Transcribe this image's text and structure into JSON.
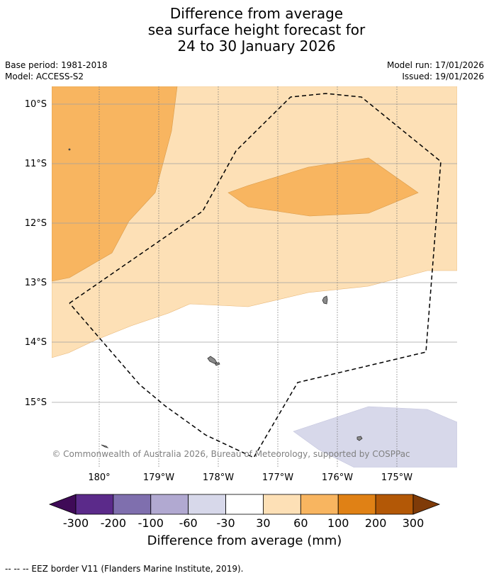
{
  "title": {
    "line1": "Difference from average",
    "line2": "sea surface height forecast for",
    "line3": "24 to 30 January 2026"
  },
  "meta": {
    "base_period": "Base period: 1981-2018",
    "model": "Model: ACCESS-S2",
    "model_run": "Model run: 17/01/2026",
    "issued": "Issued: 19/01/2026"
  },
  "map": {
    "lat_labels": [
      "10°S",
      "11°S",
      "12°S",
      "13°S",
      "14°S",
      "15°S"
    ],
    "lon_labels": [
      "180°",
      "179°W",
      "178°W",
      "177°W",
      "176°W",
      "175°W"
    ],
    "copyright": "© Commonwealth of Australia 2026, Bureau of Meteorology, supported by COSPPac",
    "legend_footnote": "--  --  -- EEZ border V11 (Flanders Marine Institute, 2019)."
  },
  "colorbar": {
    "label": "Difference from average (mm)",
    "ticks": [
      "-300",
      "-200",
      "-100",
      "-60",
      "-30",
      "30",
      "60",
      "100",
      "200",
      "300"
    ],
    "colors": [
      "#3f0a57",
      "#5b2a8a",
      "#7f6fae",
      "#b1a9d1",
      "#d7d8ea",
      "#ffffff",
      "#fde0b6",
      "#f8b560",
      "#e08115",
      "#b35806",
      "#7f3b08"
    ]
  }
}
